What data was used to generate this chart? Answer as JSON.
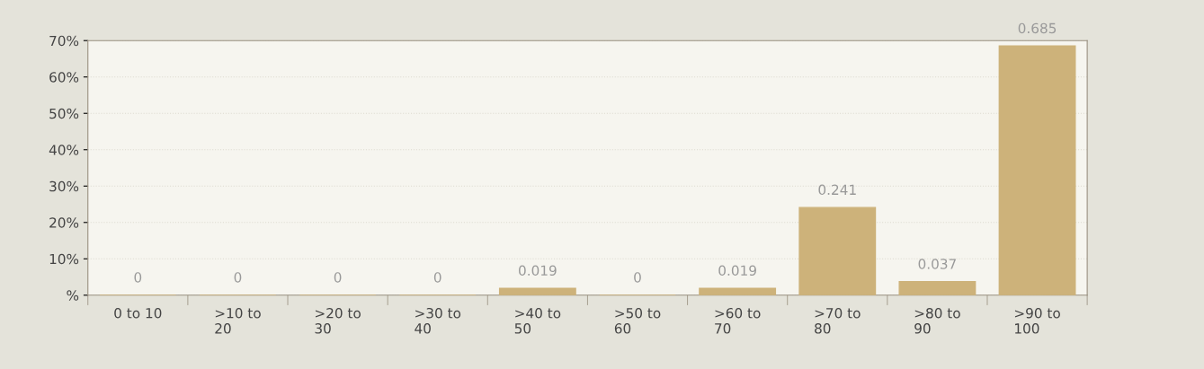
{
  "chart_data": {
    "type": "bar",
    "categories": [
      "0 to 10",
      ">10 to\n20",
      ">20 to\n30",
      ">30 to\n40",
      ">40 to\n50",
      ">50 to\n60",
      ">60 to\n70",
      ">70 to\n80",
      ">80 to\n90",
      ">90 to\n100"
    ],
    "values": [
      0,
      0,
      0,
      0,
      0.019,
      0,
      0.019,
      0.241,
      0.037,
      0.685
    ],
    "data_labels": true,
    "color": "#cdb27a",
    "ylim": [
      0,
      0.7
    ],
    "yticks": [
      {
        "value": 0,
        "label": "%"
      },
      {
        "value": 0.1,
        "label": "10%"
      },
      {
        "value": 0.2,
        "label": "20%"
      },
      {
        "value": 0.3,
        "label": "30%"
      },
      {
        "value": 0.4,
        "label": "40%"
      },
      {
        "value": 0.5,
        "label": "50%"
      },
      {
        "value": 0.6,
        "label": "60%"
      },
      {
        "value": 0.7,
        "label": "70%"
      }
    ],
    "grid": "y"
  }
}
